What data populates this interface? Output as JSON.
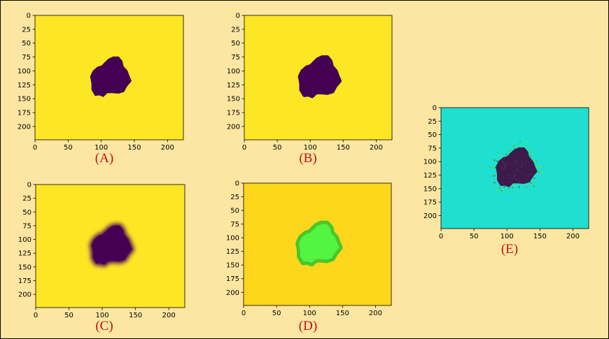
{
  "panels": [
    {
      "id": "A",
      "label": "(A)",
      "background": "#fde725",
      "blob_fill": "#440154",
      "blob_style": "sharp"
    },
    {
      "id": "B",
      "label": "(B)",
      "background": "#fde725",
      "blob_fill": "#440154",
      "blob_style": "smooth"
    },
    {
      "id": "C",
      "label": "(C)",
      "background": "#fde725",
      "blob_fill": "#440154",
      "blob_style": "blurred"
    },
    {
      "id": "D",
      "label": "(D)",
      "background": "#fdd71c",
      "blob_fill": "#54f542",
      "blob_style": "contour"
    },
    {
      "id": "E",
      "label": "(E)",
      "background": "#1fdfd0",
      "blob_fill": "#3c1b4b",
      "blob_style": "speckled"
    }
  ],
  "axes": {
    "x_ticks": [
      "0",
      "50",
      "100",
      "150",
      "200"
    ],
    "y_ticks": [
      "0",
      "25",
      "50",
      "75",
      "100",
      "125",
      "150",
      "175",
      "200"
    ],
    "x_tick_values": [
      0,
      50,
      100,
      150,
      200
    ],
    "y_tick_values": [
      0,
      25,
      50,
      75,
      100,
      125,
      150,
      175,
      200
    ],
    "xlim": [
      0,
      224
    ],
    "ylim": [
      0,
      224
    ]
  }
}
